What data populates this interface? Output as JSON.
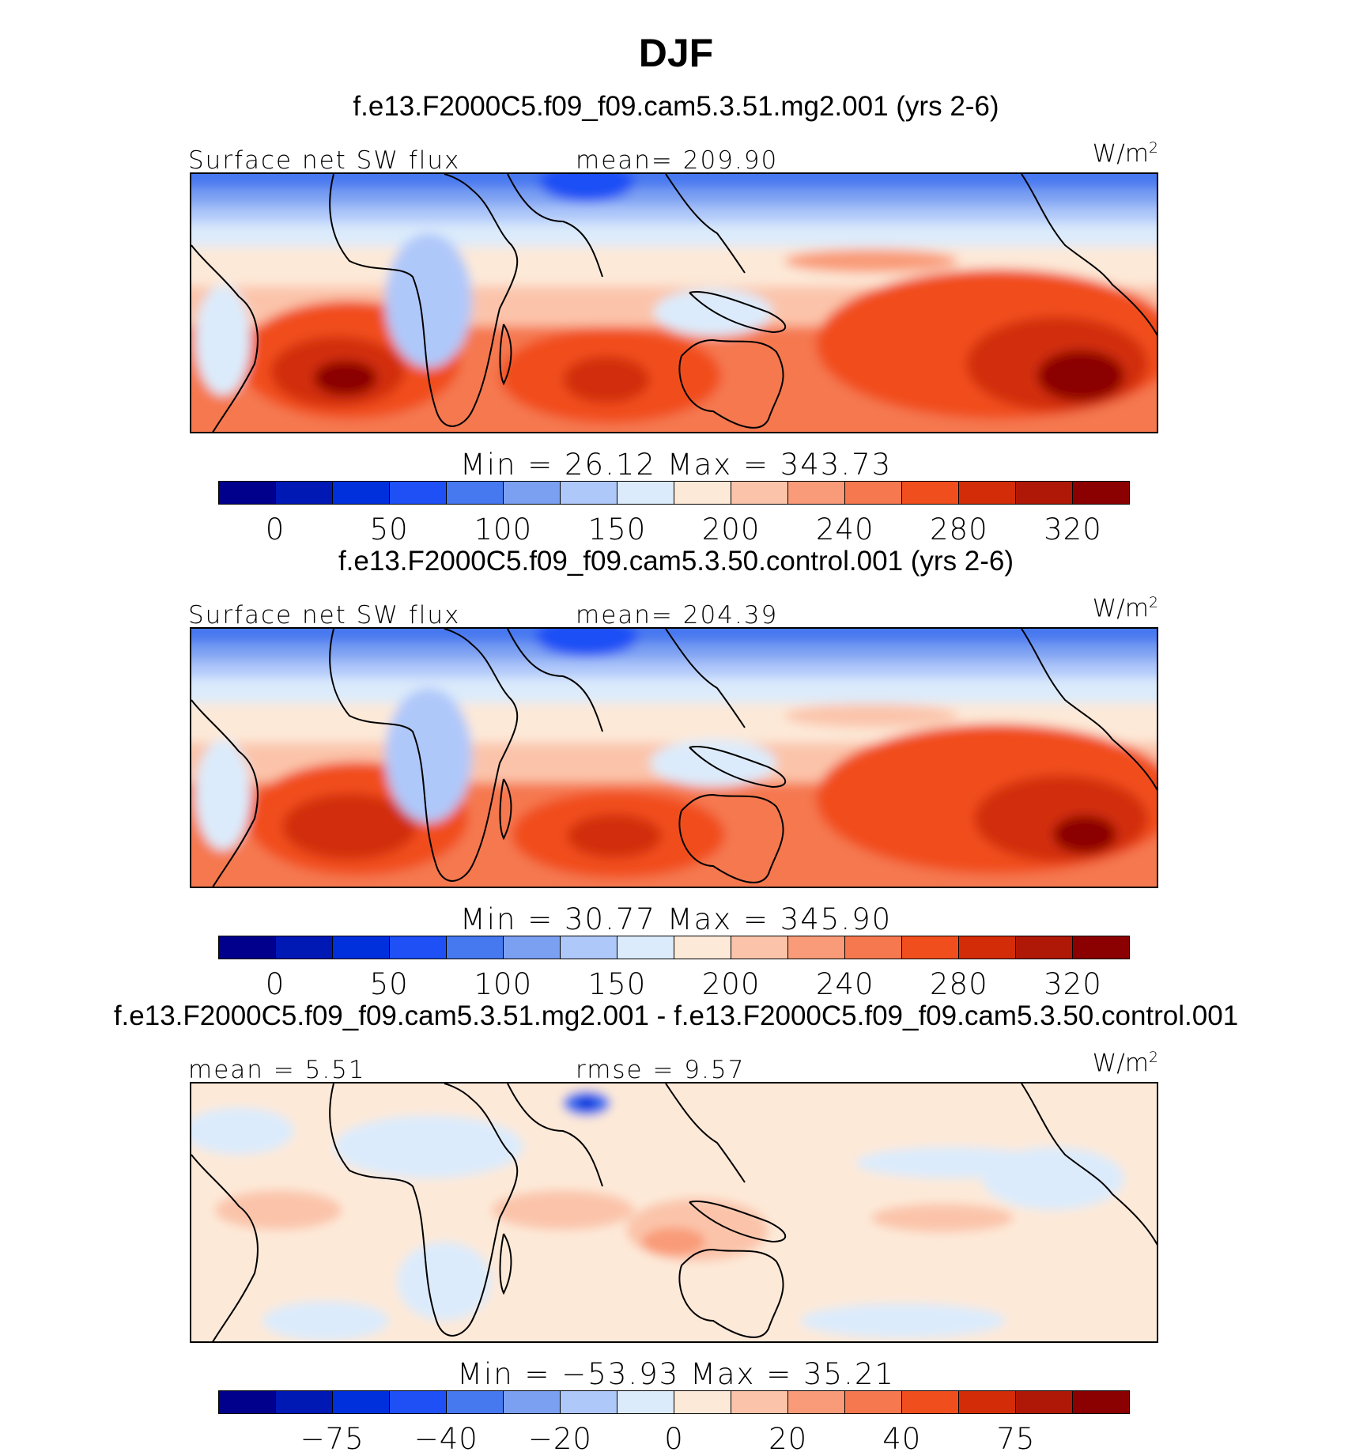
{
  "chart_data": [
    {
      "type": "heatmap",
      "title": "DJF",
      "subtitle": "f.e13.F2000C5.f09_f09.cam5.3.51.mg2.001 (yrs 2-6)",
      "variable_label": "Surface net SW flux",
      "stat_label": "mean= 209.90",
      "units": "W/m",
      "units_sup": "2",
      "min_max_label": "Min =   26.12 Max = 343.73",
      "colorbar_levels": [
        "0",
        "50",
        "100",
        "150",
        "200",
        "240",
        "280",
        "320"
      ],
      "colorbar_colors": [
        "#00008c",
        "#0018b4",
        "#0030dc",
        "#1e50f5",
        "#4678f0",
        "#7ba0f2",
        "#afc8fa",
        "#dcebfb",
        "#fde9d8",
        "#fbc4aa",
        "#f99b78",
        "#f5784f",
        "#f14e1e",
        "#d22d08",
        "#af1806",
        "#8b0000"
      ]
    },
    {
      "type": "heatmap",
      "subtitle": "f.e13.F2000C5.f09_f09.cam5.3.50.control.001 (yrs 2-6)",
      "variable_label": "Surface net SW flux",
      "stat_label": "mean= 204.39",
      "units": "W/m",
      "units_sup": "2",
      "min_max_label": "Min =   30.77 Max = 345.90",
      "colorbar_levels": [
        "0",
        "50",
        "100",
        "150",
        "200",
        "240",
        "280",
        "320"
      ],
      "colorbar_colors": [
        "#00008c",
        "#0018b4",
        "#0030dc",
        "#1e50f5",
        "#4678f0",
        "#7ba0f2",
        "#afc8fa",
        "#dcebfb",
        "#fde9d8",
        "#fbc4aa",
        "#f99b78",
        "#f5784f",
        "#f14e1e",
        "#d22d08",
        "#af1806",
        "#8b0000"
      ]
    },
    {
      "type": "heatmap",
      "subtitle": "f.e13.F2000C5.f09_f09.cam5.3.51.mg2.001 - f.e13.F2000C5.f09_f09.cam5.3.50.control.001",
      "stat_label": "mean =   5.51",
      "stat_label_2": "rmse =   9.57",
      "units": "W/m",
      "units_sup": "2",
      "min_max_label": "Min = −53.93 Max =   35.21",
      "colorbar_levels": [
        "−75",
        "−40",
        "−20",
        "0",
        "20",
        "40",
        "75"
      ],
      "colorbar_colors": [
        "#00008c",
        "#0018b4",
        "#0030dc",
        "#1e50f5",
        "#4678f0",
        "#7ba0f2",
        "#afc8fa",
        "#dcebfb",
        "#fde9d8",
        "#fbc4aa",
        "#f99b78",
        "#f5784f",
        "#f14e1e",
        "#d22d08",
        "#af1806",
        "#8b0000"
      ]
    }
  ]
}
